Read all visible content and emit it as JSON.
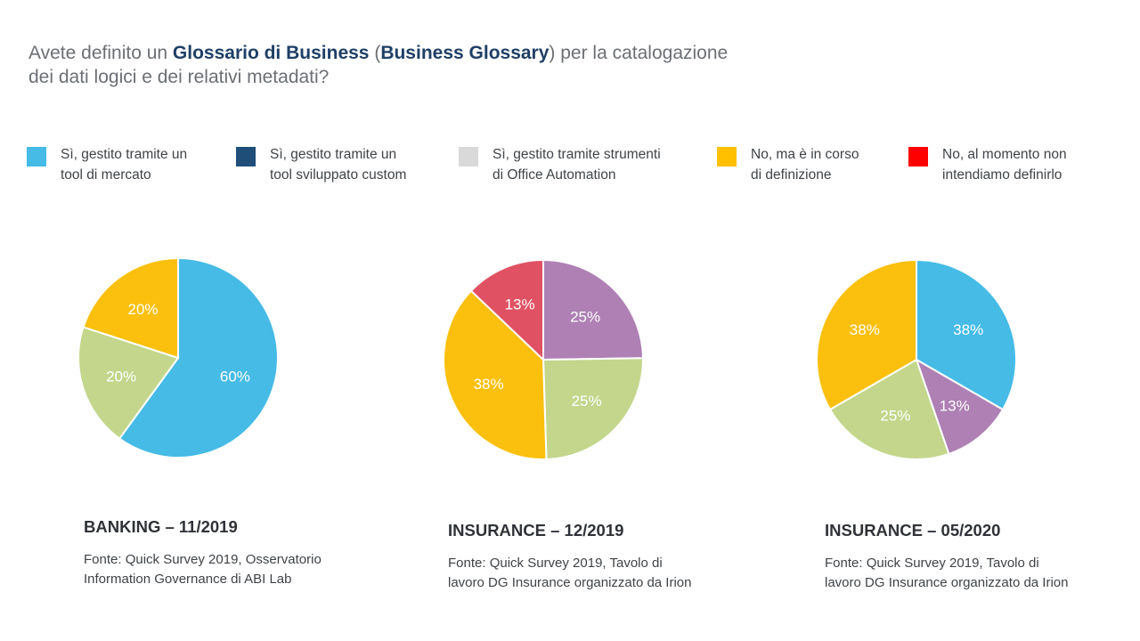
{
  "title": {
    "part1": "Avete definito un ",
    "bold1": "Glossario di Business",
    "part2": " (",
    "bold2": "Business Glossary",
    "part3": ") per la catalogazione",
    "line2": "dei dati logici e dei relativi metadati?"
  },
  "legend": [
    {
      "line1": "Sì, gestito tramite un",
      "line2": "tool di mercato",
      "color": "#45BBE6"
    },
    {
      "line1": "Sì, gestito tramite un",
      "line2": "tool sviluppato  custom",
      "color": "#1F4E79"
    },
    {
      "line1": "Sì, gestito tramite strumenti",
      "line2": "di Office Automation",
      "color": "#D9D9D9"
    },
    {
      "line1": "No, ma è in corso",
      "line2": "di definizione",
      "color": "#FFC000"
    },
    {
      "line1": "No, al momento non",
      "line2": "intendiamo definirlo",
      "color": "#FF0000"
    }
  ],
  "chart_data": [
    {
      "type": "pie",
      "title": "BANKING – 11/2019",
      "source_line1": "Fonte: Quick Survey 2019, Osservatorio",
      "source_line2": "Information Governance di ABI Lab",
      "slices": [
        {
          "value": 60,
          "label": "60%",
          "color": "#45BBE6"
        },
        {
          "value": 20,
          "label": "20%",
          "color": "#C3D68B"
        },
        {
          "value": 20,
          "label": "20%",
          "color": "#FBC00E"
        }
      ]
    },
    {
      "type": "pie",
      "title": "INSURANCE – 12/2019",
      "source_line1": "Fonte: Quick Survey 2019, Tavolo di",
      "source_line2": "lavoro DG Insurance organizzato da Irion",
      "slices": [
        {
          "value": 25,
          "label": "25%",
          "color": "#AE80B4"
        },
        {
          "value": 25,
          "label": "25%",
          "color": "#C3D68B"
        },
        {
          "value": 38,
          "label": "38%",
          "color": "#FBC00E"
        },
        {
          "value": 13,
          "label": "13%",
          "color": "#E05263"
        }
      ]
    },
    {
      "type": "pie",
      "title": "INSURANCE – 05/2020",
      "source_line1": "Fonte: Quick Survey 2019, Tavolo di",
      "source_line2": "lavoro DG Insurance organizzato da Irion",
      "slices": [
        {
          "value": 38,
          "label": "38%",
          "color": "#45BBE6"
        },
        {
          "value": 13,
          "label": "13%",
          "color": "#AE80B4"
        },
        {
          "value": 25,
          "label": "25%",
          "color": "#C3D68B"
        },
        {
          "value": 38,
          "label": "38%",
          "color": "#FBC00E"
        }
      ]
    }
  ]
}
